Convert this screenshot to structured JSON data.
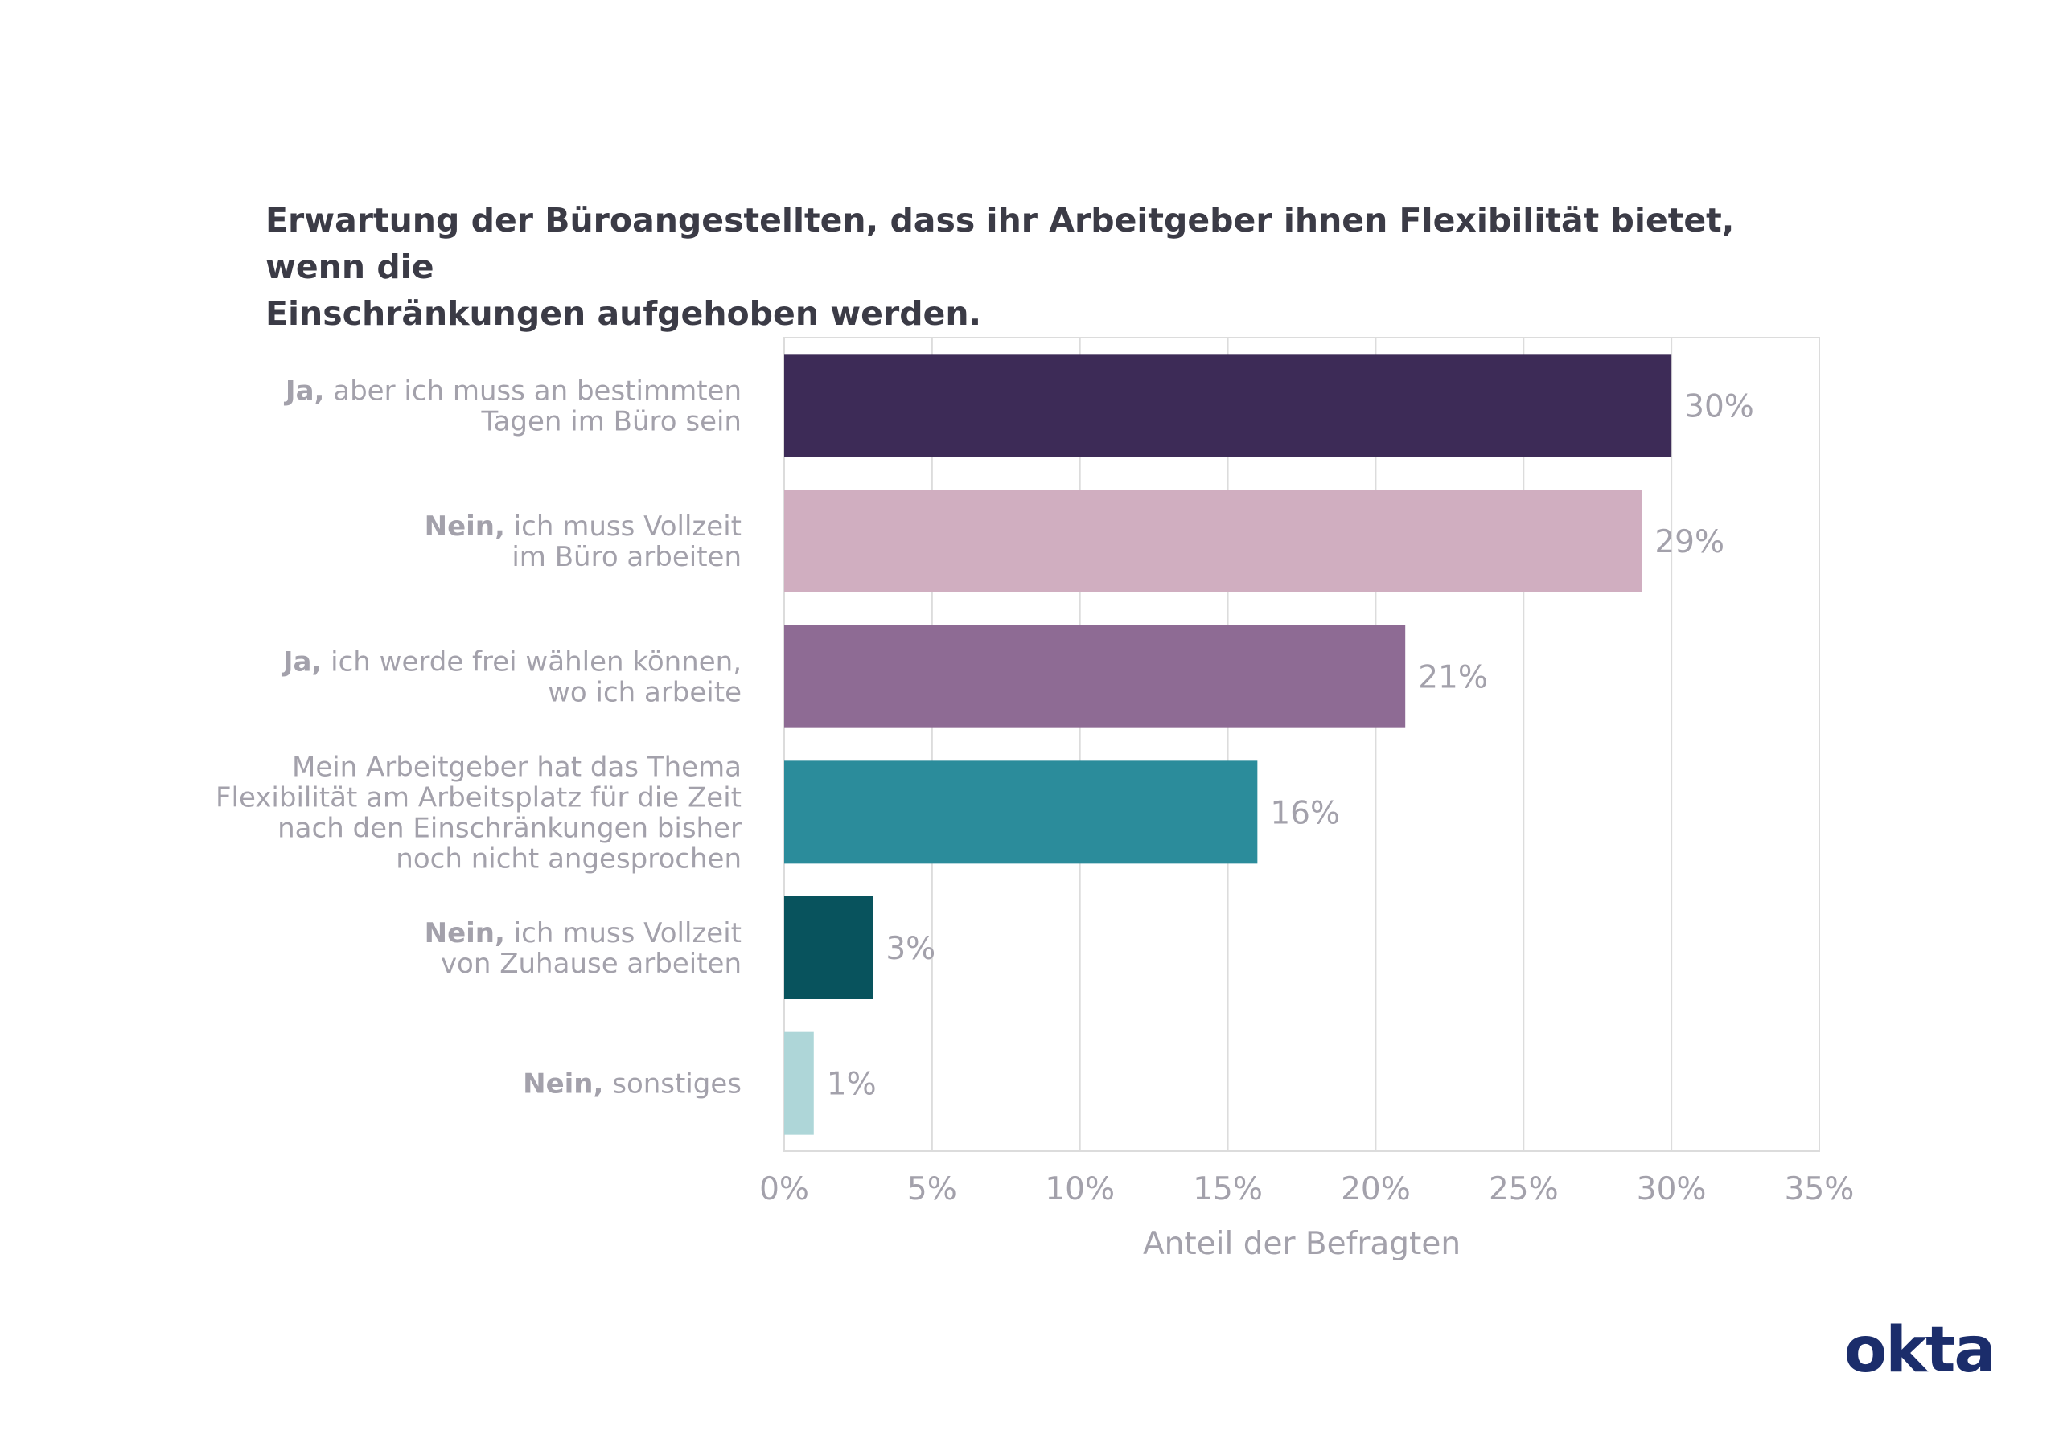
{
  "chart_data": {
    "type": "bar",
    "orientation": "horizontal",
    "title_lines": [
      "Erwartung der Büroangestellten, dass ihr Arbeitgeber ihnen Flexibilität bietet, wenn die",
      "Einschränkungen aufgehoben werden."
    ],
    "categories": [
      [
        {
          "bold": "Ja,",
          "text": " aber ich muss an bestimmten"
        },
        {
          "bold": "",
          "text": "Tagen im Büro sein"
        }
      ],
      [
        {
          "bold": "Nein,",
          "text": " ich muss Vollzeit"
        },
        {
          "bold": "",
          "text": "im Büro arbeiten"
        }
      ],
      [
        {
          "bold": "Ja,",
          "text": " ich werde frei wählen können,"
        },
        {
          "bold": "",
          "text": "wo ich arbeite"
        }
      ],
      [
        {
          "bold": "",
          "text": "Mein Arbeitgeber hat das Thema"
        },
        {
          "bold": "",
          "text": "Flexibilität am Arbeitsplatz für die Zeit"
        },
        {
          "bold": "",
          "text": "nach den Einschränkungen bisher"
        },
        {
          "bold": "",
          "text": "noch nicht angesprochen"
        }
      ],
      [
        {
          "bold": "Nein,",
          "text": " ich muss Vollzeit"
        },
        {
          "bold": "",
          "text": "von Zuhause arbeiten"
        }
      ],
      [
        {
          "bold": "Nein,",
          "text": " sonstiges"
        }
      ]
    ],
    "values": [
      30,
      29,
      21,
      16,
      3,
      1
    ],
    "value_labels": [
      "30%",
      "29%",
      "21%",
      "16%",
      "3%",
      "1%"
    ],
    "colors": [
      "#3d2b57",
      "#d0aec0",
      "#8e6b94",
      "#2b8c9b",
      "#08535d",
      "#aed6d8"
    ],
    "xlim": [
      0,
      35
    ],
    "xticks": [
      0,
      5,
      10,
      15,
      20,
      25,
      30,
      35
    ],
    "xtick_labels": [
      "0%",
      "5%",
      "10%",
      "15%",
      "20%",
      "25%",
      "30%",
      "35%"
    ],
    "xlabel": "Anteil der Befragten",
    "ylabel": "",
    "grid": true,
    "gridline_color": "#dcdcdc",
    "text_color": "#a3a1ab"
  },
  "logo": "okta",
  "logo_color": "#1b2d6b"
}
